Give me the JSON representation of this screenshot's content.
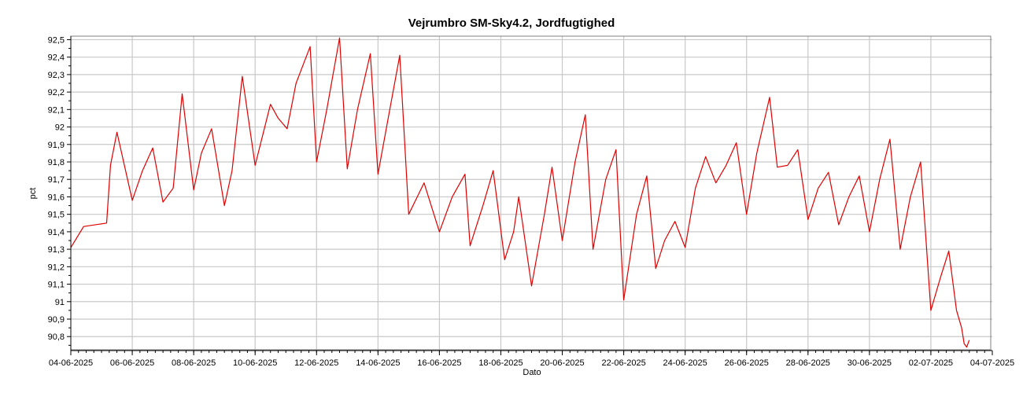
{
  "chart_data": {
    "type": "line",
    "title": "Vejrumbro SM-Sky4.2, Jordfugtighed",
    "xlabel": "Dato",
    "ylabel": "pct",
    "grid": true,
    "legend": "none",
    "colors": {
      "series": "#e00000",
      "grid": "#c8c8c8",
      "axis": "#000000"
    },
    "x_range": [
      "2025-06-04",
      "2025-07-04"
    ],
    "ylim": [
      90.72,
      92.52
    ],
    "x_ticks": [
      "2025-06-04",
      "2025-06-06",
      "2025-06-08",
      "2025-06-10",
      "2025-06-12",
      "2025-06-14",
      "2025-06-16",
      "2025-06-18",
      "2025-06-20",
      "2025-06-22",
      "2025-06-24",
      "2025-06-26",
      "2025-06-28",
      "2025-06-30",
      "2025-07-02",
      "2025-07-04"
    ],
    "x_tick_labels": [
      "04-06-2025",
      "06-06-2025",
      "08-06-2025",
      "10-06-2025",
      "12-06-2025",
      "14-06-2025",
      "16-06-2025",
      "18-06-2025",
      "20-06-2025",
      "22-06-2025",
      "24-06-2025",
      "26-06-2025",
      "28-06-2025",
      "30-06-2025",
      "02-07-2025",
      "04-07-2025"
    ],
    "y_ticks": [
      90.8,
      90.9,
      91,
      91.1,
      91.2,
      91.3,
      91.4,
      91.5,
      91.6,
      91.7,
      91.8,
      91.9,
      92,
      92.1,
      92.2,
      92.3,
      92.4,
      92.5
    ],
    "y_tick_labels": [
      "90,8",
      "90,9",
      "91",
      "91,1",
      "91,2",
      "91,3",
      "91,4",
      "91,5",
      "91,6",
      "91,7",
      "91,8",
      "91,9",
      "92",
      "92,1",
      "92,2",
      "92,3",
      "92,4",
      "92,5"
    ],
    "series": [
      {
        "x": [
          "2025-06-04 00:00",
          "2025-06-04 10:00",
          "2025-06-05 04:00",
          "2025-06-05 07:00",
          "2025-06-05 12:00",
          "2025-06-06 00:00",
          "2025-06-06 08:00",
          "2025-06-06 16:00",
          "2025-06-07 00:00",
          "2025-06-07 08:00",
          "2025-06-07 15:00",
          "2025-06-08 00:00",
          "2025-06-08 06:00",
          "2025-06-08 14:00",
          "2025-06-09 00:00",
          "2025-06-09 06:00",
          "2025-06-09 14:00",
          "2025-06-10 00:00",
          "2025-06-10 12:00",
          "2025-06-10 18:00",
          "2025-06-11 01:00",
          "2025-06-11 08:00",
          "2025-06-11 19:00",
          "2025-06-12 00:00",
          "2025-06-12 08:00",
          "2025-06-12 18:00",
          "2025-06-13 00:00",
          "2025-06-13 08:00",
          "2025-06-13 18:00",
          "2025-06-14 00:00",
          "2025-06-14 08:00",
          "2025-06-14 17:00",
          "2025-06-15 00:00",
          "2025-06-15 08:00",
          "2025-06-15 12:00",
          "2025-06-16 00:00",
          "2025-06-16 10:00",
          "2025-06-16 20:00",
          "2025-06-17 00:00",
          "2025-06-17 10:00",
          "2025-06-17 18:00",
          "2025-06-18 03:00",
          "2025-06-18 10:00",
          "2025-06-18 14:00",
          "2025-06-19 00:00",
          "2025-06-19 10:00",
          "2025-06-19 16:00",
          "2025-06-20 00:00",
          "2025-06-20 10:00",
          "2025-06-20 18:00",
          "2025-06-21 00:00",
          "2025-06-21 10:00",
          "2025-06-21 18:00",
          "2025-06-22 00:00",
          "2025-06-22 10:00",
          "2025-06-22 18:00",
          "2025-06-23 01:00",
          "2025-06-23 08:00",
          "2025-06-23 16:00",
          "2025-06-24 00:00",
          "2025-06-24 08:00",
          "2025-06-24 16:00",
          "2025-06-25 00:00",
          "2025-06-25 08:00",
          "2025-06-25 16:00",
          "2025-06-26 00:00",
          "2025-06-26 08:00",
          "2025-06-26 18:00",
          "2025-06-27 00:00",
          "2025-06-27 08:00",
          "2025-06-27 16:00",
          "2025-06-28 00:00",
          "2025-06-28 08:00",
          "2025-06-28 16:00",
          "2025-06-29 00:00",
          "2025-06-29 08:00",
          "2025-06-29 16:00",
          "2025-06-30 00:00",
          "2025-06-30 08:00",
          "2025-06-30 16:00",
          "2025-07-01 00:00",
          "2025-07-01 08:00",
          "2025-07-01 16:00",
          "2025-07-02 00:00",
          "2025-07-02 08:00",
          "2025-07-02 14:00",
          "2025-07-02 20:00",
          "2025-07-03 00:00",
          "2025-07-03 02:00",
          "2025-07-03 04:00",
          "2025-07-03 06:00"
        ],
        "values": [
          91.31,
          91.43,
          91.45,
          91.78,
          91.97,
          91.58,
          91.75,
          91.88,
          91.57,
          91.65,
          92.19,
          91.64,
          91.85,
          91.99,
          91.55,
          91.75,
          92.29,
          91.78,
          92.13,
          92.05,
          91.99,
          92.25,
          92.46,
          91.8,
          92.1,
          92.51,
          91.76,
          92.1,
          92.42,
          91.73,
          92.05,
          92.41,
          91.5,
          91.62,
          91.68,
          91.4,
          91.6,
          91.73,
          91.32,
          91.55,
          91.75,
          91.24,
          91.4,
          91.6,
          91.09,
          91.5,
          91.77,
          91.35,
          91.8,
          92.07,
          91.3,
          91.7,
          91.87,
          91.01,
          91.5,
          91.72,
          91.19,
          91.35,
          91.46,
          91.31,
          91.65,
          91.83,
          91.68,
          91.78,
          91.91,
          91.5,
          91.85,
          92.17,
          91.77,
          91.78,
          91.87,
          91.47,
          91.65,
          91.74,
          91.44,
          91.6,
          91.72,
          91.4,
          91.7,
          91.93,
          91.3,
          91.6,
          91.8,
          90.95,
          91.15,
          91.29,
          90.95,
          90.85,
          90.76,
          90.74,
          90.78
        ]
      }
    ]
  }
}
